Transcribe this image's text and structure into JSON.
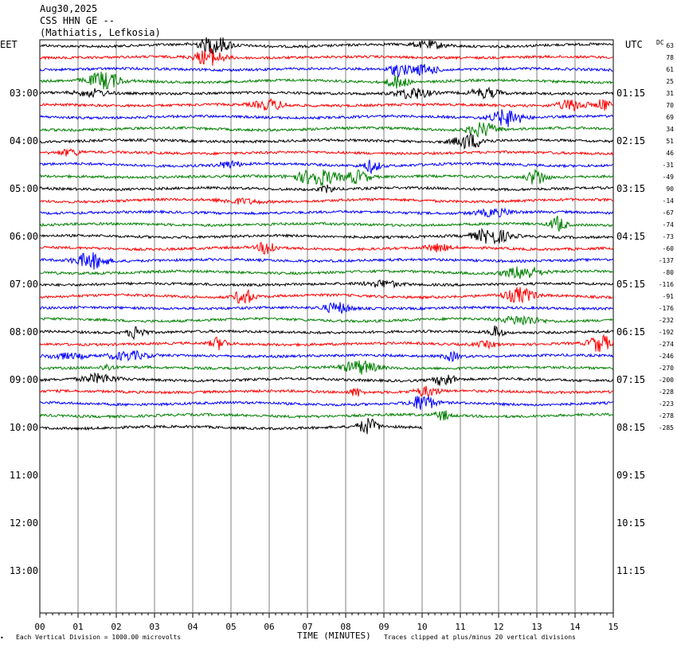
{
  "header": {
    "date": "Aug30,2025",
    "station": "CSS HHN GE --",
    "location": "(Mathiatis, Lefkosia)"
  },
  "left_zone": "EET",
  "right_zone": "UTC",
  "dc_label": "DC",
  "footer": {
    "scale_note": "Each Vertical Division = 1000.00 microvolts",
    "x_title": "TIME (MINUTES)",
    "clip_note": "Traces clipped at plus/minus 20 vertical divisions",
    "corner_mark": "•"
  },
  "chart_data": {
    "type": "line",
    "title": "CSS HHN GE --",
    "xlabel": "TIME (MINUTES)",
    "xlim": [
      0,
      15
    ],
    "x_ticks": [
      "00",
      "01",
      "02",
      "03",
      "04",
      "05",
      "06",
      "07",
      "08",
      "09",
      "10",
      "11",
      "12",
      "13",
      "14",
      "15"
    ],
    "trace_minutes": 15,
    "trace_colors": [
      "#000000",
      "#ff0000",
      "#0000ff",
      "#008000"
    ],
    "hour_labels_left": [
      "03:00",
      "04:00",
      "05:00",
      "06:00",
      "07:00",
      "08:00",
      "09:00",
      "10:00",
      "11:00",
      "12:00",
      "13:00"
    ],
    "hour_labels_right": [
      "01:15",
      "02:15",
      "03:15",
      "04:15",
      "05:15",
      "06:15",
      "07:15",
      "08:15",
      "09:15",
      "10:15",
      "11:15"
    ],
    "dc_offsets": [
      63,
      78,
      61,
      25,
      31,
      70,
      69,
      34,
      51,
      46,
      -31,
      -49,
      90,
      -14,
      -67,
      -74,
      -73,
      -60,
      -137,
      -80,
      -116,
      -91,
      -176,
      -232,
      -192,
      -274,
      -246,
      -270,
      -200,
      -228,
      -223,
      -278,
      -285
    ],
    "last_trace_end_minute": 10
  }
}
